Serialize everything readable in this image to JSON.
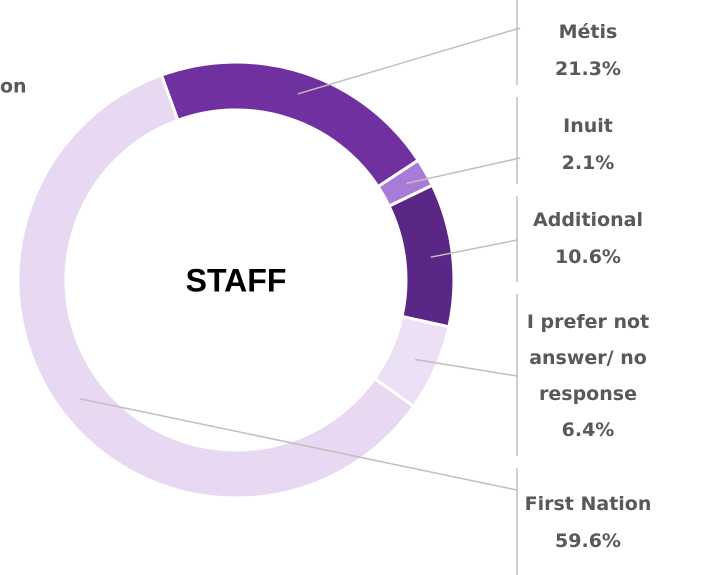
{
  "chart_data": {
    "type": "donut",
    "center_label": "STAFF",
    "clipped_label": "on",
    "categories": [
      "Métis",
      "Inuit",
      "Additional",
      "I prefer not answer/ no response",
      "First Nation"
    ],
    "values": [
      21.3,
      2.1,
      10.6,
      6.4,
      59.6
    ],
    "value_labels": [
      "21.3%",
      "2.1%",
      "10.6%",
      "6.4%",
      "59.6%"
    ],
    "colors": [
      "#7030a0",
      "#a97bd8",
      "#5a2787",
      "#ece0f6",
      "#e8d8f2"
    ]
  }
}
